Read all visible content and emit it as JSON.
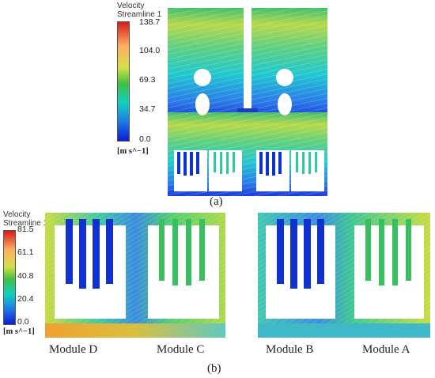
{
  "panel_a": {
    "legend_title_line1": "Velocity",
    "legend_title_line2": "Streamline 1",
    "ticks": [
      "138.7",
      "104.0",
      "69.3",
      "34.7",
      "0.0"
    ],
    "unit": "[m s^−1]",
    "caption": "(a)"
  },
  "panel_b": {
    "legend_title_line1": "Velocity",
    "legend_title_line2": "Streamline 1",
    "ticks": [
      "81.5",
      "61.1",
      "40.8",
      "20.4",
      "0.0"
    ],
    "unit": "[m s^−1]",
    "caption": "(b)",
    "modules": [
      "Module D",
      "Module C",
      "Module B",
      "Module A"
    ]
  },
  "colors": {
    "scale": [
      "#d7191c",
      "#fdae61",
      "#d4e14a",
      "#40c040",
      "#10d0c0",
      "#1e78e6",
      "#0a1ed2"
    ]
  }
}
